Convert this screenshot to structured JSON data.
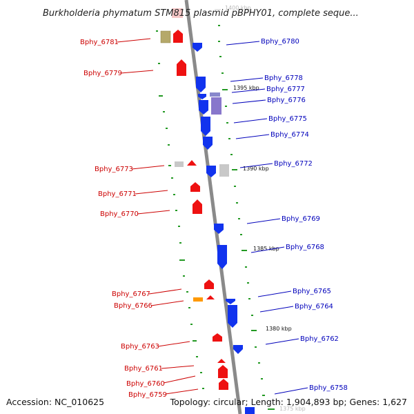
{
  "title": "Burkholderia phymatum STM815 plasmid pBPHY01, complete seque...",
  "footer": {
    "accession": "Accession: NC_010625",
    "summary": "Topology: circular; Length: 1,904,893 bp; Genes: 1,627"
  },
  "colors": {
    "forward": "#ee1111",
    "reverse": "#1133ee",
    "tick": "#229922",
    "axis": "#888888"
  },
  "kbp_marks": [
    {
      "label": "1400 kbp",
      "faint": true
    },
    {
      "label": "1395 kbp",
      "faint": false
    },
    {
      "label": "1390 kbp",
      "faint": false
    },
    {
      "label": "1385 kbp",
      "faint": false
    },
    {
      "label": "1380 kbp",
      "faint": false
    },
    {
      "label": "1375 kbp",
      "faint": true
    }
  ],
  "genes_left": [
    {
      "label": "Bphy_6781"
    },
    {
      "label": "Bphy_6779"
    },
    {
      "label": "Bphy_6773"
    },
    {
      "label": "Bphy_6771"
    },
    {
      "label": "Bphy_6770"
    },
    {
      "label": "Bphy_6767"
    },
    {
      "label": "Bphy_6766"
    },
    {
      "label": "Bphy_6763"
    },
    {
      "label": "Bphy_6761"
    },
    {
      "label": "Bphy_6760"
    },
    {
      "label": "Bphy_6759"
    }
  ],
  "genes_right": [
    {
      "label": "Bphy_6780"
    },
    {
      "label": "Bphy_6778"
    },
    {
      "label": "Bphy_6777"
    },
    {
      "label": "Bphy_6776"
    },
    {
      "label": "Bphy_6775"
    },
    {
      "label": "Bphy_6774"
    },
    {
      "label": "Bphy_6772"
    },
    {
      "label": "Bphy_6769"
    },
    {
      "label": "Bphy_6768"
    },
    {
      "label": "Bphy_6765"
    },
    {
      "label": "Bphy_6764"
    },
    {
      "label": "Bphy_6762"
    },
    {
      "label": "Bphy_6758"
    }
  ]
}
